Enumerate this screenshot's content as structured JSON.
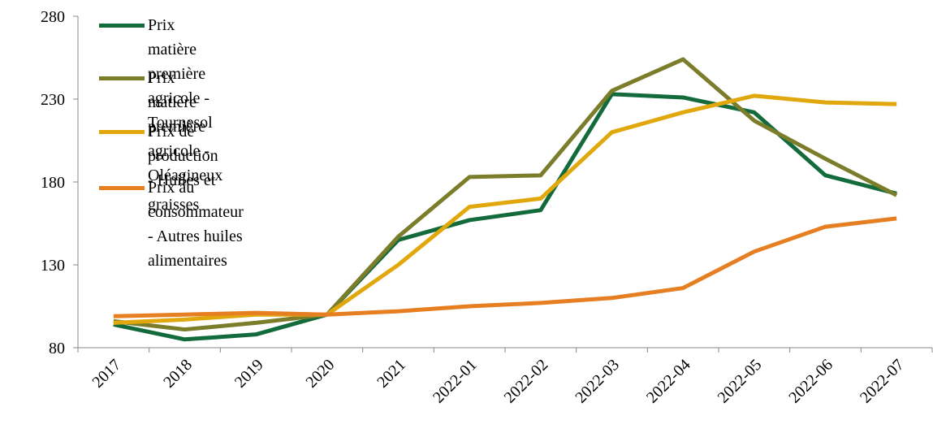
{
  "chart_data": {
    "type": "line",
    "categories": [
      "2017",
      "2018",
      "2019",
      "2020",
      "2021",
      "2022-01",
      "2022-02",
      "2022-03",
      "2022-04",
      "2022-05",
      "2022-06",
      "2022-07"
    ],
    "series": [
      {
        "name": "Prix matière première agricole - Tournesol",
        "color": "#136b3c",
        "values": [
          94,
          85,
          88,
          100,
          145,
          157,
          163,
          233,
          231,
          222,
          184,
          173
        ]
      },
      {
        "name": "Prix matière première agricole - Oléagineux",
        "color": "#7b7d2a",
        "values": [
          96,
          91,
          95,
          100,
          147,
          183,
          184,
          235,
          254,
          217,
          194,
          172
        ]
      },
      {
        "name": "Prix de production - Huiles et graisses",
        "color": "#e0a80d",
        "values": [
          95,
          97,
          100,
          100,
          130,
          165,
          170,
          210,
          222,
          232,
          228,
          227
        ]
      },
      {
        "name": "Prix au consommateur - Autres huiles alimentaires",
        "color": "#e67e22",
        "values": [
          99,
          100,
          101,
          100,
          102,
          105,
          107,
          110,
          116,
          138,
          153,
          158
        ]
      }
    ],
    "ylim": [
      80,
      280
    ],
    "yticks": [
      80,
      130,
      180,
      230,
      280
    ],
    "legend": "upper left"
  }
}
